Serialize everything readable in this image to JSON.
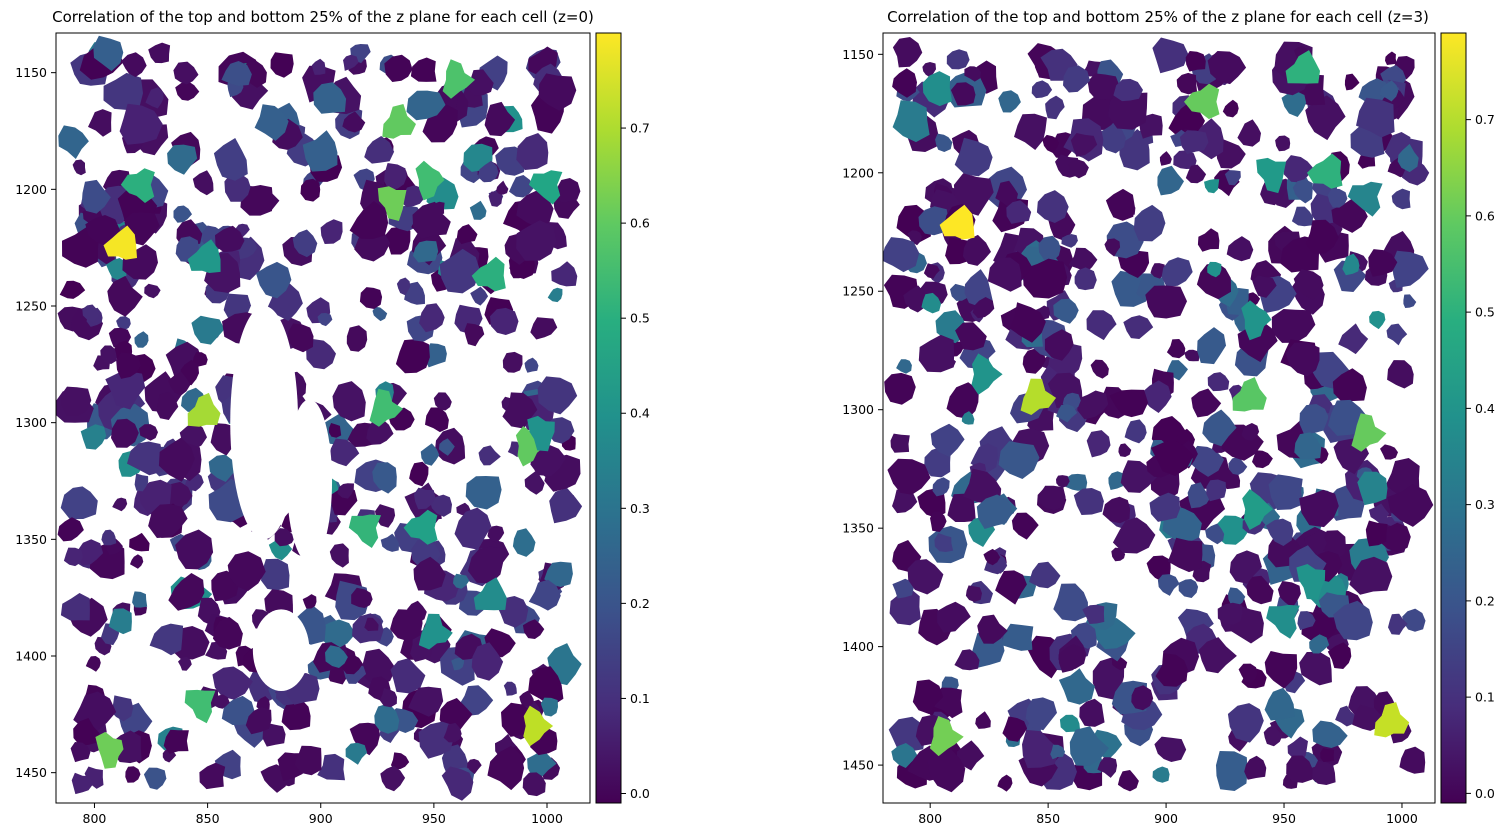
{
  "chart_data": [
    {
      "type": "heatmap",
      "title": "Correlation of the top and bottom 25% of the z plane for each cell (z=0)",
      "xlabel": "",
      "ylabel": "",
      "xlim": [
        783,
        1019
      ],
      "ylim": [
        1463,
        1133
      ],
      "x_ticks": [
        "800",
        "850",
        "900",
        "950",
        "1000"
      ],
      "x_tick_values": [
        800,
        850,
        900,
        950,
        1000
      ],
      "y_ticks": [
        "1150",
        "1200",
        "1250",
        "1300",
        "1350",
        "1400",
        "1450"
      ],
      "y_tick_values": [
        1150,
        1200,
        1250,
        1300,
        1350,
        1400,
        1450
      ],
      "colorbar": {
        "range": [
          -0.01,
          0.8
        ],
        "ticks": [
          "0.0",
          "0.1",
          "0.2",
          "0.3",
          "0.4",
          "0.5",
          "0.6",
          "0.7"
        ],
        "tick_values": [
          0.0,
          0.1,
          0.2,
          0.3,
          0.4,
          0.5,
          0.6,
          0.7
        ],
        "colormap": "viridis"
      },
      "highlight_cells": [
        {
          "x": 812,
          "y": 1224,
          "value": 0.79
        },
        {
          "x": 934,
          "y": 1172,
          "value": 0.6
        },
        {
          "x": 960,
          "y": 1153,
          "value": 0.57
        },
        {
          "x": 948,
          "y": 1196,
          "value": 0.55
        },
        {
          "x": 932,
          "y": 1205,
          "value": 0.62
        },
        {
          "x": 1000,
          "y": 1198,
          "value": 0.47
        },
        {
          "x": 975,
          "y": 1237,
          "value": 0.5
        },
        {
          "x": 848,
          "y": 1296,
          "value": 0.69
        },
        {
          "x": 928,
          "y": 1294,
          "value": 0.55
        },
        {
          "x": 992,
          "y": 1310,
          "value": 0.6
        },
        {
          "x": 998,
          "y": 1304,
          "value": 0.4
        },
        {
          "x": 920,
          "y": 1345,
          "value": 0.52
        },
        {
          "x": 945,
          "y": 1345,
          "value": 0.45
        },
        {
          "x": 975,
          "y": 1375,
          "value": 0.38
        },
        {
          "x": 950,
          "y": 1390,
          "value": 0.4
        },
        {
          "x": 995,
          "y": 1430,
          "value": 0.72
        },
        {
          "x": 807,
          "y": 1440,
          "value": 0.62
        },
        {
          "x": 847,
          "y": 1420,
          "value": 0.55
        },
        {
          "x": 820,
          "y": 1198,
          "value": 0.5
        },
        {
          "x": 849,
          "y": 1230,
          "value": 0.42
        }
      ]
    },
    {
      "type": "heatmap",
      "title": "Correlation of the top and bottom 25% of the z plane for each cell (z=3)",
      "xlabel": "",
      "ylabel": "",
      "xlim": [
        780,
        1014
      ],
      "ylim": [
        1466,
        1141
      ],
      "x_ticks": [
        "800",
        "850",
        "900",
        "950",
        "1000"
      ],
      "x_tick_values": [
        800,
        850,
        900,
        950,
        1000
      ],
      "y_ticks": [
        "1150",
        "1200",
        "1250",
        "1300",
        "1350",
        "1400",
        "1450"
      ],
      "y_tick_values": [
        1150,
        1200,
        1250,
        1300,
        1350,
        1400,
        1450
      ],
      "colorbar": {
        "range": [
          -0.01,
          0.79
        ],
        "ticks": [
          "0.0",
          "0.1",
          "0.2",
          "0.3",
          "0.4",
          "0.5",
          "0.6",
          "0.7"
        ],
        "tick_values": [
          0.0,
          0.1,
          0.2,
          0.3,
          0.4,
          0.5,
          0.6,
          0.7
        ],
        "colormap": "viridis"
      },
      "highlight_cells": [
        {
          "x": 812,
          "y": 1222,
          "value": 0.79
        },
        {
          "x": 995,
          "y": 1432,
          "value": 0.72
        },
        {
          "x": 806,
          "y": 1438,
          "value": 0.62
        },
        {
          "x": 938,
          "y": 1262,
          "value": 0.4
        },
        {
          "x": 945,
          "y": 1200,
          "value": 0.42
        },
        {
          "x": 985,
          "y": 1210,
          "value": 0.35
        },
        {
          "x": 968,
          "y": 1200,
          "value": 0.5
        },
        {
          "x": 935,
          "y": 1295,
          "value": 0.58
        },
        {
          "x": 985,
          "y": 1310,
          "value": 0.6
        },
        {
          "x": 938,
          "y": 1342,
          "value": 0.43
        },
        {
          "x": 962,
          "y": 1372,
          "value": 0.4
        },
        {
          "x": 950,
          "y": 1388,
          "value": 0.38
        },
        {
          "x": 916,
          "y": 1170,
          "value": 0.6
        },
        {
          "x": 958,
          "y": 1157,
          "value": 0.5
        },
        {
          "x": 845,
          "y": 1295,
          "value": 0.7
        },
        {
          "x": 823,
          "y": 1285,
          "value": 0.4
        }
      ]
    }
  ]
}
